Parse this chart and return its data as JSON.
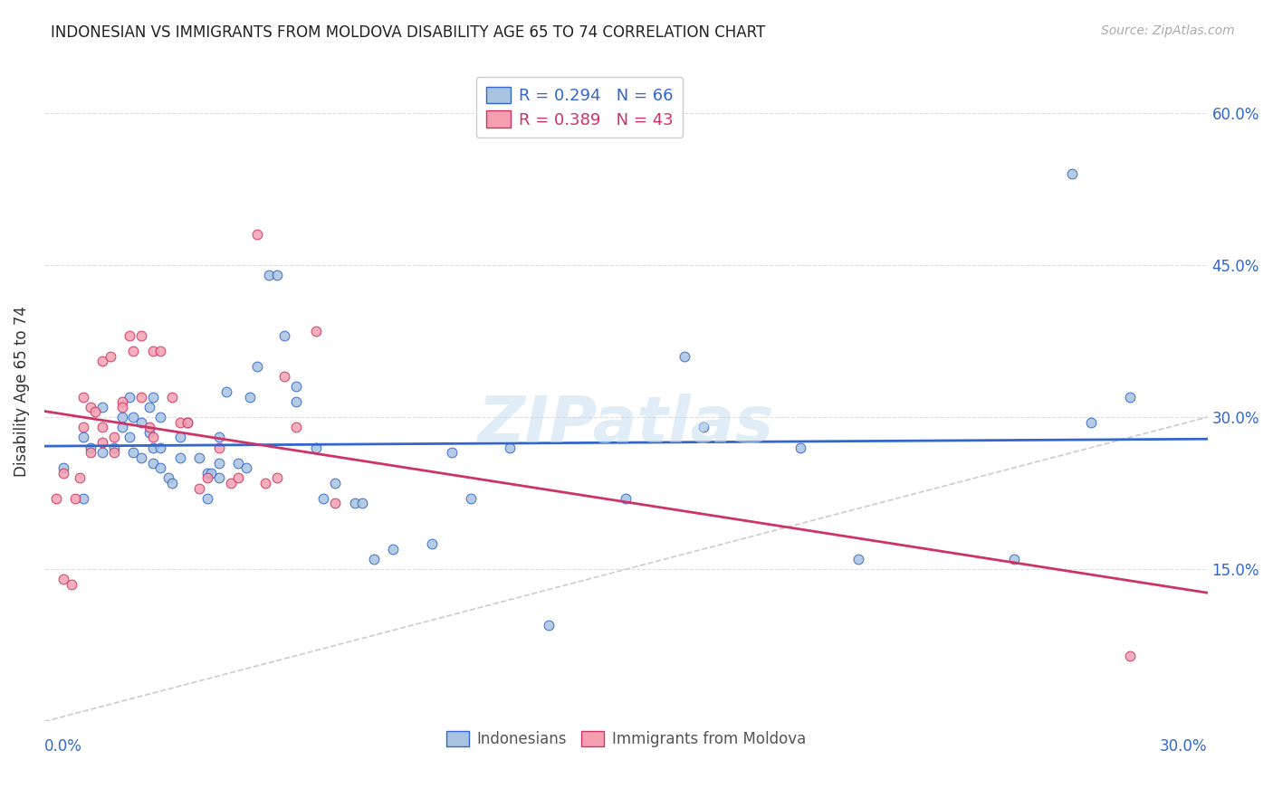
{
  "title": "INDONESIAN VS IMMIGRANTS FROM MOLDOVA DISABILITY AGE 65 TO 74 CORRELATION CHART",
  "source": "Source: ZipAtlas.com",
  "ylabel": "Disability Age 65 to 74",
  "x_label_bottom_left": "0.0%",
  "x_label_bottom_right": "30.0%",
  "y_ticks": [
    0.0,
    0.15,
    0.3,
    0.45,
    0.6
  ],
  "y_tick_labels": [
    "",
    "15.0%",
    "30.0%",
    "45.0%",
    "60.0%"
  ],
  "x_lim": [
    0.0,
    0.3
  ],
  "y_lim": [
    0.0,
    0.65
  ],
  "legend_indonesian_R": "R = 0.294",
  "legend_indonesian_N": "N = 66",
  "legend_moldova_R": "R = 0.389",
  "legend_moldova_N": "N = 43",
  "indonesian_color": "#a8c4e0",
  "indonesia_line_color": "#3366cc",
  "moldova_color": "#f4a0b0",
  "moldova_line_color": "#cc3366",
  "diagonal_line_color": "#cccccc",
  "watermark": "ZIPatlas",
  "background_color": "#ffffff",
  "indonesian_scatter_x": [
    0.005,
    0.01,
    0.01,
    0.012,
    0.015,
    0.015,
    0.018,
    0.02,
    0.02,
    0.022,
    0.022,
    0.023,
    0.023,
    0.025,
    0.025,
    0.027,
    0.027,
    0.028,
    0.028,
    0.028,
    0.03,
    0.03,
    0.03,
    0.032,
    0.033,
    0.035,
    0.035,
    0.037,
    0.04,
    0.042,
    0.042,
    0.043,
    0.045,
    0.045,
    0.045,
    0.047,
    0.05,
    0.052,
    0.053,
    0.055,
    0.058,
    0.06,
    0.062,
    0.065,
    0.065,
    0.07,
    0.072,
    0.075,
    0.08,
    0.082,
    0.085,
    0.09,
    0.1,
    0.105,
    0.11,
    0.12,
    0.13,
    0.15,
    0.165,
    0.17,
    0.195,
    0.21,
    0.25,
    0.265,
    0.27,
    0.28
  ],
  "indonesian_scatter_y": [
    0.25,
    0.22,
    0.28,
    0.27,
    0.265,
    0.31,
    0.27,
    0.3,
    0.29,
    0.32,
    0.28,
    0.265,
    0.3,
    0.26,
    0.295,
    0.31,
    0.285,
    0.27,
    0.255,
    0.32,
    0.25,
    0.3,
    0.27,
    0.24,
    0.235,
    0.28,
    0.26,
    0.295,
    0.26,
    0.245,
    0.22,
    0.245,
    0.24,
    0.255,
    0.28,
    0.325,
    0.255,
    0.25,
    0.32,
    0.35,
    0.44,
    0.44,
    0.38,
    0.315,
    0.33,
    0.27,
    0.22,
    0.235,
    0.215,
    0.215,
    0.16,
    0.17,
    0.175,
    0.265,
    0.22,
    0.27,
    0.095,
    0.22,
    0.36,
    0.29,
    0.27,
    0.16,
    0.16,
    0.54,
    0.295,
    0.32
  ],
  "moldova_scatter_x": [
    0.003,
    0.005,
    0.005,
    0.007,
    0.008,
    0.009,
    0.01,
    0.01,
    0.012,
    0.012,
    0.013,
    0.015,
    0.015,
    0.015,
    0.017,
    0.018,
    0.018,
    0.02,
    0.02,
    0.022,
    0.023,
    0.025,
    0.025,
    0.027,
    0.028,
    0.028,
    0.03,
    0.033,
    0.035,
    0.037,
    0.04,
    0.042,
    0.045,
    0.048,
    0.05,
    0.055,
    0.057,
    0.06,
    0.062,
    0.065,
    0.07,
    0.075,
    0.28
  ],
  "moldova_scatter_y": [
    0.22,
    0.245,
    0.14,
    0.135,
    0.22,
    0.24,
    0.32,
    0.29,
    0.31,
    0.265,
    0.305,
    0.355,
    0.275,
    0.29,
    0.36,
    0.28,
    0.265,
    0.315,
    0.31,
    0.38,
    0.365,
    0.38,
    0.32,
    0.29,
    0.365,
    0.28,
    0.365,
    0.32,
    0.295,
    0.295,
    0.23,
    0.24,
    0.27,
    0.235,
    0.24,
    0.48,
    0.235,
    0.24,
    0.34,
    0.29,
    0.385,
    0.215,
    0.065
  ],
  "grid_color": "#dddddd"
}
